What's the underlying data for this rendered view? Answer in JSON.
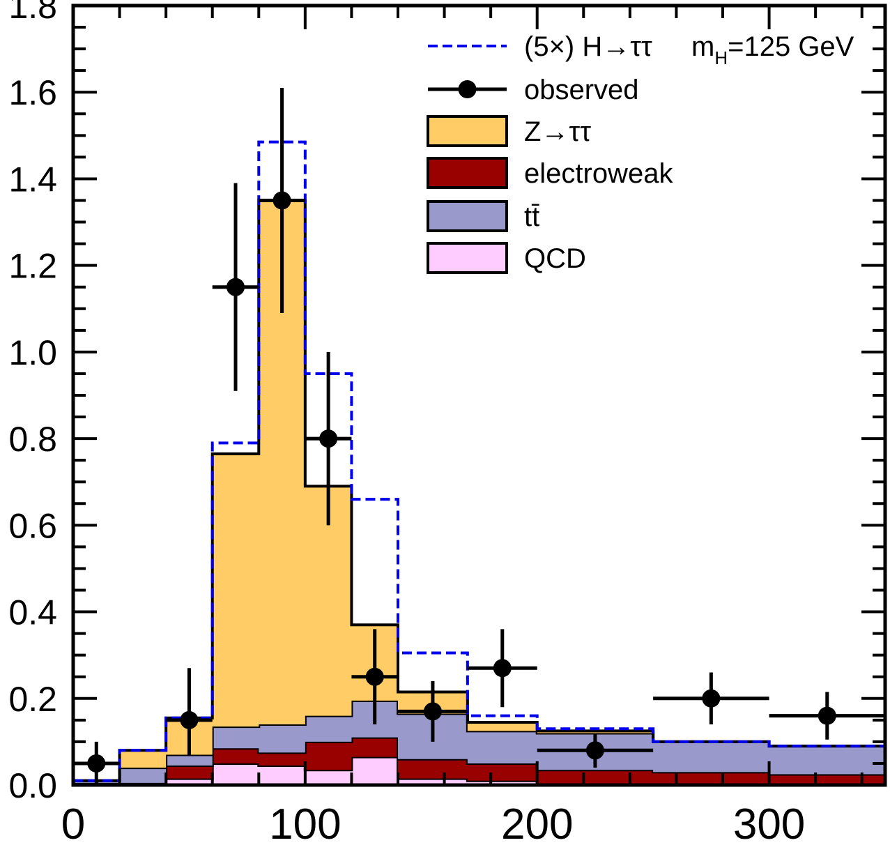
{
  "chart_data": {
    "type": "histogram",
    "title": "",
    "xlabel": "",
    "ylabel": "",
    "xlim": [
      0,
      350
    ],
    "ylim": [
      0,
      1.8
    ],
    "x_ticks": [
      "0",
      "100",
      "200",
      "300"
    ],
    "y_ticks": [
      "0.0",
      "0.2",
      "0.4",
      "0.6",
      "0.8",
      "1.0",
      "1.2",
      "1.4",
      "1.6",
      "1.8"
    ],
    "bin_edges": [
      0,
      20,
      40,
      60,
      80,
      100,
      120,
      140,
      170,
      200,
      250,
      300,
      350
    ],
    "stack": [
      {
        "name": "QCD",
        "color": "#ffccff",
        "values": [
          0.0,
          0.0,
          0.015,
          0.05,
          0.045,
          0.035,
          0.065,
          0.015,
          0.01,
          0.0,
          0.0,
          0.0
        ]
      },
      {
        "name": "electroweak",
        "color": "#990000",
        "values": [
          0.005,
          0.005,
          0.03,
          0.035,
          0.03,
          0.065,
          0.045,
          0.045,
          0.04,
          0.035,
          0.03,
          0.025
        ]
      },
      {
        "name": "tt̄",
        "color": "#9999cc",
        "values": [
          0.005,
          0.035,
          0.025,
          0.05,
          0.065,
          0.06,
          0.085,
          0.105,
          0.075,
          0.085,
          0.07,
          0.065
        ]
      },
      {
        "name": "Z→ττ",
        "color": "#ffcc66",
        "values": [
          0.0,
          0.04,
          0.085,
          0.63,
          1.21,
          0.53,
          0.175,
          0.05,
          0.02,
          0.005,
          0.0,
          0.0
        ]
      }
    ],
    "signal": {
      "name": "(5×) H→ττ",
      "mass_label": "m",
      "mass_sub": "H",
      "mass_value": "=125 GeV",
      "color": "#0000ee",
      "values": [
        0.01,
        0.08,
        0.155,
        0.79,
        1.485,
        0.95,
        0.66,
        0.305,
        0.16,
        0.13,
        0.1,
        0.09
      ]
    },
    "observed": {
      "name": "observed",
      "points": [
        {
          "x": 10,
          "y": 0.05,
          "err_lo": 0.05,
          "err_hi": 0.05,
          "xlo": 0,
          "xhi": 20
        },
        {
          "x": 50,
          "y": 0.15,
          "err_lo": 0.08,
          "err_hi": 0.12,
          "xlo": 40,
          "xhi": 60
        },
        {
          "x": 70,
          "y": 1.15,
          "err_lo": 0.24,
          "err_hi": 0.24,
          "xlo": 60,
          "xhi": 80
        },
        {
          "x": 90,
          "y": 1.35,
          "err_lo": 0.26,
          "err_hi": 0.26,
          "xlo": 80,
          "xhi": 100
        },
        {
          "x": 110,
          "y": 0.8,
          "err_lo": 0.2,
          "err_hi": 0.2,
          "xlo": 100,
          "xhi": 120
        },
        {
          "x": 130,
          "y": 0.25,
          "err_lo": 0.11,
          "err_hi": 0.11,
          "xlo": 120,
          "xhi": 140
        },
        {
          "x": 155,
          "y": 0.17,
          "err_lo": 0.07,
          "err_hi": 0.07,
          "xlo": 140,
          "xhi": 170
        },
        {
          "x": 185,
          "y": 0.27,
          "err_lo": 0.09,
          "err_hi": 0.09,
          "xlo": 170,
          "xhi": 200
        },
        {
          "x": 225,
          "y": 0.08,
          "err_lo": 0.04,
          "err_hi": 0.04,
          "xlo": 200,
          "xhi": 250
        },
        {
          "x": 275,
          "y": 0.2,
          "err_lo": 0.06,
          "err_hi": 0.06,
          "xlo": 250,
          "xhi": 300
        },
        {
          "x": 325,
          "y": 0.16,
          "err_lo": 0.055,
          "err_hi": 0.055,
          "xlo": 300,
          "xhi": 350
        }
      ]
    },
    "legend": {
      "position": "top-right",
      "entries": [
        {
          "label": "(5×) H→ττ",
          "kind": "dashed-line",
          "color": "#0000ee"
        },
        {
          "label": "observed",
          "kind": "marker",
          "color": "#000000"
        },
        {
          "label": "Z→ττ",
          "kind": "box",
          "color": "#ffcc66"
        },
        {
          "label": "electroweak",
          "kind": "box",
          "color": "#990000"
        },
        {
          "label": "tt̄",
          "kind": "box",
          "color": "#9999cc"
        },
        {
          "label": "QCD",
          "kind": "box",
          "color": "#ffccff"
        }
      ]
    },
    "grid": false
  }
}
